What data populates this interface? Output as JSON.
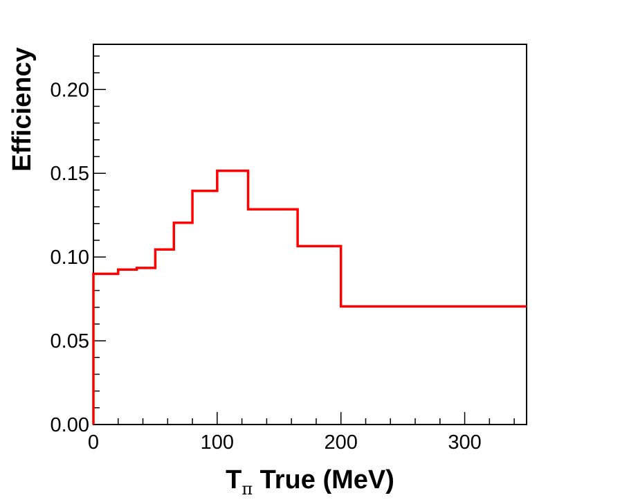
{
  "chart_data": {
    "type": "line",
    "style": "step-histogram",
    "xlabel": {
      "main": "T",
      "subscript": "π",
      "rest": " True (MeV)"
    },
    "ylabel": "Efficiency",
    "xlim": [
      0,
      350
    ],
    "ylim": [
      0,
      0.227
    ],
    "grid": false,
    "line_color": "#ff0000",
    "x_ticks": [
      {
        "value": 0,
        "label": "0"
      },
      {
        "value": 100,
        "label": "100"
      },
      {
        "value": 200,
        "label": "200"
      },
      {
        "value": 300,
        "label": "300"
      }
    ],
    "y_ticks": [
      {
        "value": 0.0,
        "label": "0.00"
      },
      {
        "value": 0.05,
        "label": "0.05"
      },
      {
        "value": 0.1,
        "label": "0.10"
      },
      {
        "value": 0.15,
        "label": "0.15"
      },
      {
        "value": 0.2,
        "label": "0.20"
      }
    ],
    "bin_edges": [
      0,
      20,
      35,
      50,
      65,
      80,
      100,
      125,
      165,
      200,
      350
    ],
    "values": [
      0.09,
      0.0925,
      0.0935,
      0.1045,
      0.1205,
      0.1395,
      0.1515,
      0.1285,
      0.1065,
      0.0705
    ]
  }
}
